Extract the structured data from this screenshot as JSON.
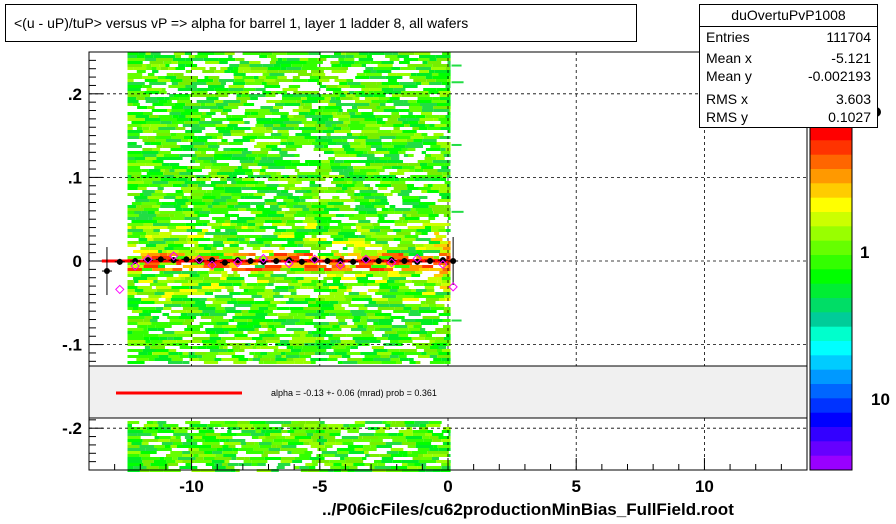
{
  "title": "<(u - uP)/tuP> versus   vP => alpha for barrel 1, layer 1 ladder 8, all wafers",
  "stats": {
    "name": "duOvertuPvP1008",
    "rows": [
      {
        "key": "Entries",
        "value": "111704"
      },
      {
        "key": "Mean x",
        "value": "-5.121"
      },
      {
        "key": "Mean y",
        "value": "-0.002193"
      },
      {
        "key": "RMS x",
        "value": "3.603"
      },
      {
        "key": "RMS y",
        "value": "0.1027"
      }
    ]
  },
  "fit_legend": "alpha =   -0.13 +-  0.06 (mrad) prob = 0.361",
  "footer": "../P06icFiles/cu62productionMinBias_FullField.root",
  "colorbar_labels": [
    "1",
    "10"
  ],
  "colors": {
    "fit": "#ff0000",
    "marker_alt": "#ff00ff"
  },
  "chart_data": {
    "type": "heatmap",
    "title": "<(u - uP)/tuP> versus   vP => alpha for barrel 1, layer 1 ladder 8, all wafers",
    "xlim": [
      -14,
      14
    ],
    "ylim": [
      -0.25,
      0.25
    ],
    "x_ticks": [
      -10,
      -5,
      0,
      5,
      10
    ],
    "y_ticks": [
      -0.2,
      -0.1,
      0,
      0.1,
      0.2
    ],
    "grid": true,
    "heatmap_extent_x": [
      -12.5,
      0.1
    ],
    "profile_points": {
      "x": [
        -13.3,
        -12.8,
        -12.2,
        -11.7,
        -11.2,
        -10.7,
        -10.2,
        -9.7,
        -9.2,
        -8.7,
        -8.2,
        -7.7,
        -7.2,
        -6.7,
        -6.2,
        -5.7,
        -5.2,
        -4.7,
        -4.2,
        -3.7,
        -3.2,
        -2.7,
        -2.2,
        -1.7,
        -1.2,
        -0.7,
        -0.2,
        0.2
      ],
      "y": [
        -0.012,
        -0.001,
        0.0,
        0.001,
        0.002,
        0.001,
        0.002,
        0.0,
        0.001,
        -0.002,
        0.001,
        0.0,
        -0.001,
        0.0,
        0.001,
        -0.001,
        0.001,
        0.0,
        0.0,
        -0.001,
        0.001,
        0.0,
        0.001,
        0.0,
        -0.001,
        0.0,
        0.001,
        0.0
      ]
    },
    "alt_points": {
      "x": [
        -12.8,
        -12.2,
        -11.7,
        -10.7,
        -9.7,
        -9.2,
        -8.2,
        -7.2,
        -6.2,
        -5.2,
        -4.2,
        -3.2,
        -2.2,
        -1.2,
        -0.2,
        0.2
      ],
      "y": [
        -0.034,
        -0.006,
        0.002,
        0.006,
        0.002,
        -0.005,
        -0.002,
        0.003,
        -0.003,
        0.002,
        -0.005,
        0.002,
        -0.002,
        0.003,
        -0.004,
        -0.031
      ]
    },
    "fit_line": {
      "x": [
        -13.5,
        0.2
      ],
      "y": [
        0.0,
        0.0
      ]
    },
    "fit_label": "alpha =   -0.13 +-  0.06 (mrad) prob = 0.361",
    "xlabel": "../P06icFiles/cu62productionMinBias_FullField.root",
    "ylabel": ""
  }
}
